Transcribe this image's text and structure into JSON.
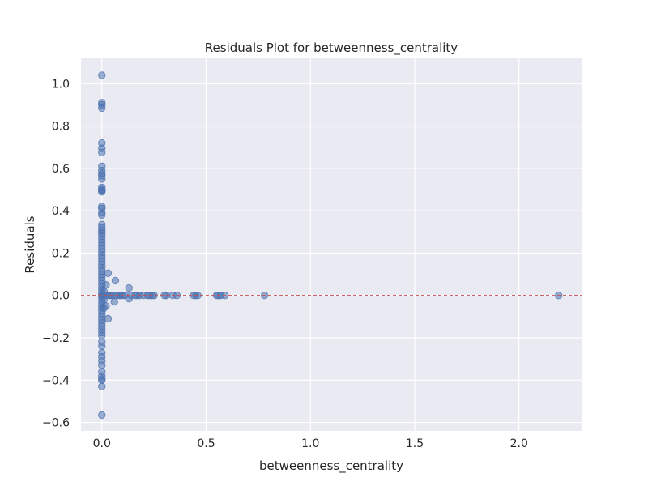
{
  "chart_data": {
    "type": "scatter",
    "title": "Residuals Plot for betweenness_centrality",
    "xlabel": "betweenness_centrality",
    "ylabel": "Residuals",
    "xlim": [
      -0.1,
      2.3
    ],
    "ylim": [
      -0.64,
      1.12
    ],
    "xticks": [
      0.0,
      0.5,
      1.0,
      1.5,
      2.0
    ],
    "xtick_labels": [
      "0.0",
      "0.5",
      "1.0",
      "1.5",
      "2.0"
    ],
    "yticks": [
      -0.6,
      -0.4,
      -0.2,
      0.0,
      0.2,
      0.4,
      0.6,
      0.8,
      1.0
    ],
    "ytick_labels": [
      "−0.6",
      "−0.4",
      "−0.2",
      "0.0",
      "0.2",
      "0.4",
      "0.6",
      "0.8",
      "1.0"
    ],
    "grid": true,
    "reference_line": {
      "y": 0.0,
      "style": "dashed",
      "color": "#c44e52"
    },
    "series": [
      {
        "color": "#4c72b0",
        "points": [
          [
            0.0,
            1.04
          ],
          [
            0.0,
            0.91
          ],
          [
            0.0,
            0.9
          ],
          [
            0.0,
            0.885
          ],
          [
            0.0,
            0.72
          ],
          [
            0.0,
            0.695
          ],
          [
            0.0,
            0.675
          ],
          [
            0.0,
            0.61
          ],
          [
            0.0,
            0.59
          ],
          [
            0.0,
            0.575
          ],
          [
            0.0,
            0.565
          ],
          [
            0.0,
            0.55
          ],
          [
            0.0,
            0.51
          ],
          [
            0.0,
            0.5
          ],
          [
            0.0,
            0.495
          ],
          [
            0.0,
            0.49
          ],
          [
            0.0,
            0.42
          ],
          [
            0.0,
            0.41
          ],
          [
            0.0,
            0.39
          ],
          [
            0.0,
            0.38
          ],
          [
            0.0,
            0.335
          ],
          [
            0.0,
            0.32
          ],
          [
            0.0,
            0.305
          ],
          [
            0.0,
            0.295
          ],
          [
            0.0,
            0.28
          ],
          [
            0.0,
            0.265
          ],
          [
            0.0,
            0.25
          ],
          [
            0.0,
            0.235
          ],
          [
            0.0,
            0.22
          ],
          [
            0.0,
            0.205
          ],
          [
            0.0,
            0.19
          ],
          [
            0.0,
            0.175
          ],
          [
            0.0,
            0.16
          ],
          [
            0.0,
            0.145
          ],
          [
            0.0,
            0.13
          ],
          [
            0.0,
            0.115
          ],
          [
            0.0,
            0.1
          ],
          [
            0.0,
            0.085
          ],
          [
            0.0,
            0.07
          ],
          [
            0.0,
            0.055
          ],
          [
            0.0,
            0.04
          ],
          [
            0.0,
            0.025
          ],
          [
            0.0,
            0.01
          ],
          [
            0.0,
            0.0
          ],
          [
            0.0,
            -0.01
          ],
          [
            0.0,
            -0.025
          ],
          [
            0.0,
            -0.04
          ],
          [
            0.0,
            -0.055
          ],
          [
            0.0,
            -0.07
          ],
          [
            0.0,
            -0.085
          ],
          [
            0.0,
            -0.1
          ],
          [
            0.0,
            -0.115
          ],
          [
            0.0,
            -0.13
          ],
          [
            0.0,
            -0.145
          ],
          [
            0.0,
            -0.16
          ],
          [
            0.0,
            -0.175
          ],
          [
            0.0,
            -0.19
          ],
          [
            0.0,
            -0.22
          ],
          [
            0.0,
            -0.24
          ],
          [
            0.0,
            -0.27
          ],
          [
            0.0,
            -0.29
          ],
          [
            0.0,
            -0.31
          ],
          [
            0.0,
            -0.33
          ],
          [
            0.0,
            -0.36
          ],
          [
            0.0,
            -0.38
          ],
          [
            0.0,
            -0.395
          ],
          [
            0.0,
            -0.4
          ],
          [
            0.0,
            -0.43
          ],
          [
            0.0,
            -0.565
          ],
          [
            0.01,
            0.02
          ],
          [
            0.01,
            -0.02
          ],
          [
            0.01,
            -0.06
          ],
          [
            0.015,
            0.0
          ],
          [
            0.02,
            0.05
          ],
          [
            0.02,
            -0.05
          ],
          [
            0.03,
            0.105
          ],
          [
            0.03,
            -0.11
          ],
          [
            0.035,
            0.0
          ],
          [
            0.04,
            0.0
          ],
          [
            0.05,
            0.0
          ],
          [
            0.06,
            -0.03
          ],
          [
            0.065,
            0.07
          ],
          [
            0.07,
            0.0
          ],
          [
            0.08,
            0.0
          ],
          [
            0.09,
            0.0
          ],
          [
            0.1,
            0.0
          ],
          [
            0.11,
            0.0
          ],
          [
            0.13,
            0.035
          ],
          [
            0.13,
            -0.015
          ],
          [
            0.14,
            0.0
          ],
          [
            0.16,
            0.0
          ],
          [
            0.17,
            0.0
          ],
          [
            0.18,
            0.0
          ],
          [
            0.2,
            0.0
          ],
          [
            0.22,
            0.0
          ],
          [
            0.23,
            0.0
          ],
          [
            0.24,
            0.0
          ],
          [
            0.25,
            0.0
          ],
          [
            0.3,
            0.0
          ],
          [
            0.31,
            0.0
          ],
          [
            0.34,
            0.0
          ],
          [
            0.36,
            0.0
          ],
          [
            0.44,
            0.0
          ],
          [
            0.45,
            0.0
          ],
          [
            0.46,
            0.0
          ],
          [
            0.55,
            0.0
          ],
          [
            0.56,
            0.0
          ],
          [
            0.57,
            0.0
          ],
          [
            0.59,
            0.0
          ],
          [
            0.78,
            0.0
          ],
          [
            2.19,
            0.0
          ]
        ]
      }
    ]
  }
}
